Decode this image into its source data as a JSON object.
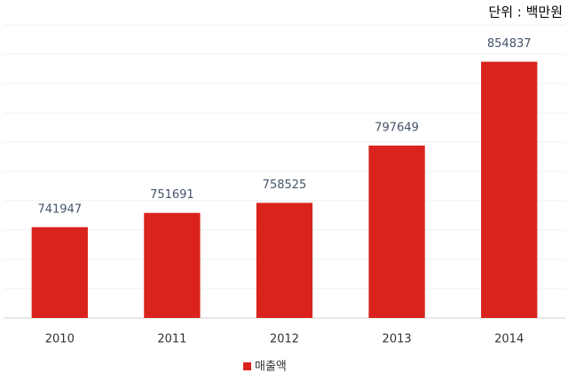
{
  "chart_data": {
    "type": "bar",
    "unit_label": "단위 : 백만원",
    "categories": [
      "2010",
      "2011",
      "2012",
      "2013",
      "2014"
    ],
    "series": [
      {
        "name": "매출액",
        "color": "#d9231c",
        "values": [
          741947,
          751691,
          758525,
          797649,
          854837
        ]
      }
    ],
    "ylim": [
      680000,
      880000
    ],
    "yticks": [
      680000,
      700000,
      720000,
      740000,
      760000,
      780000,
      800000,
      820000,
      840000,
      860000,
      880000
    ],
    "grid": true
  }
}
